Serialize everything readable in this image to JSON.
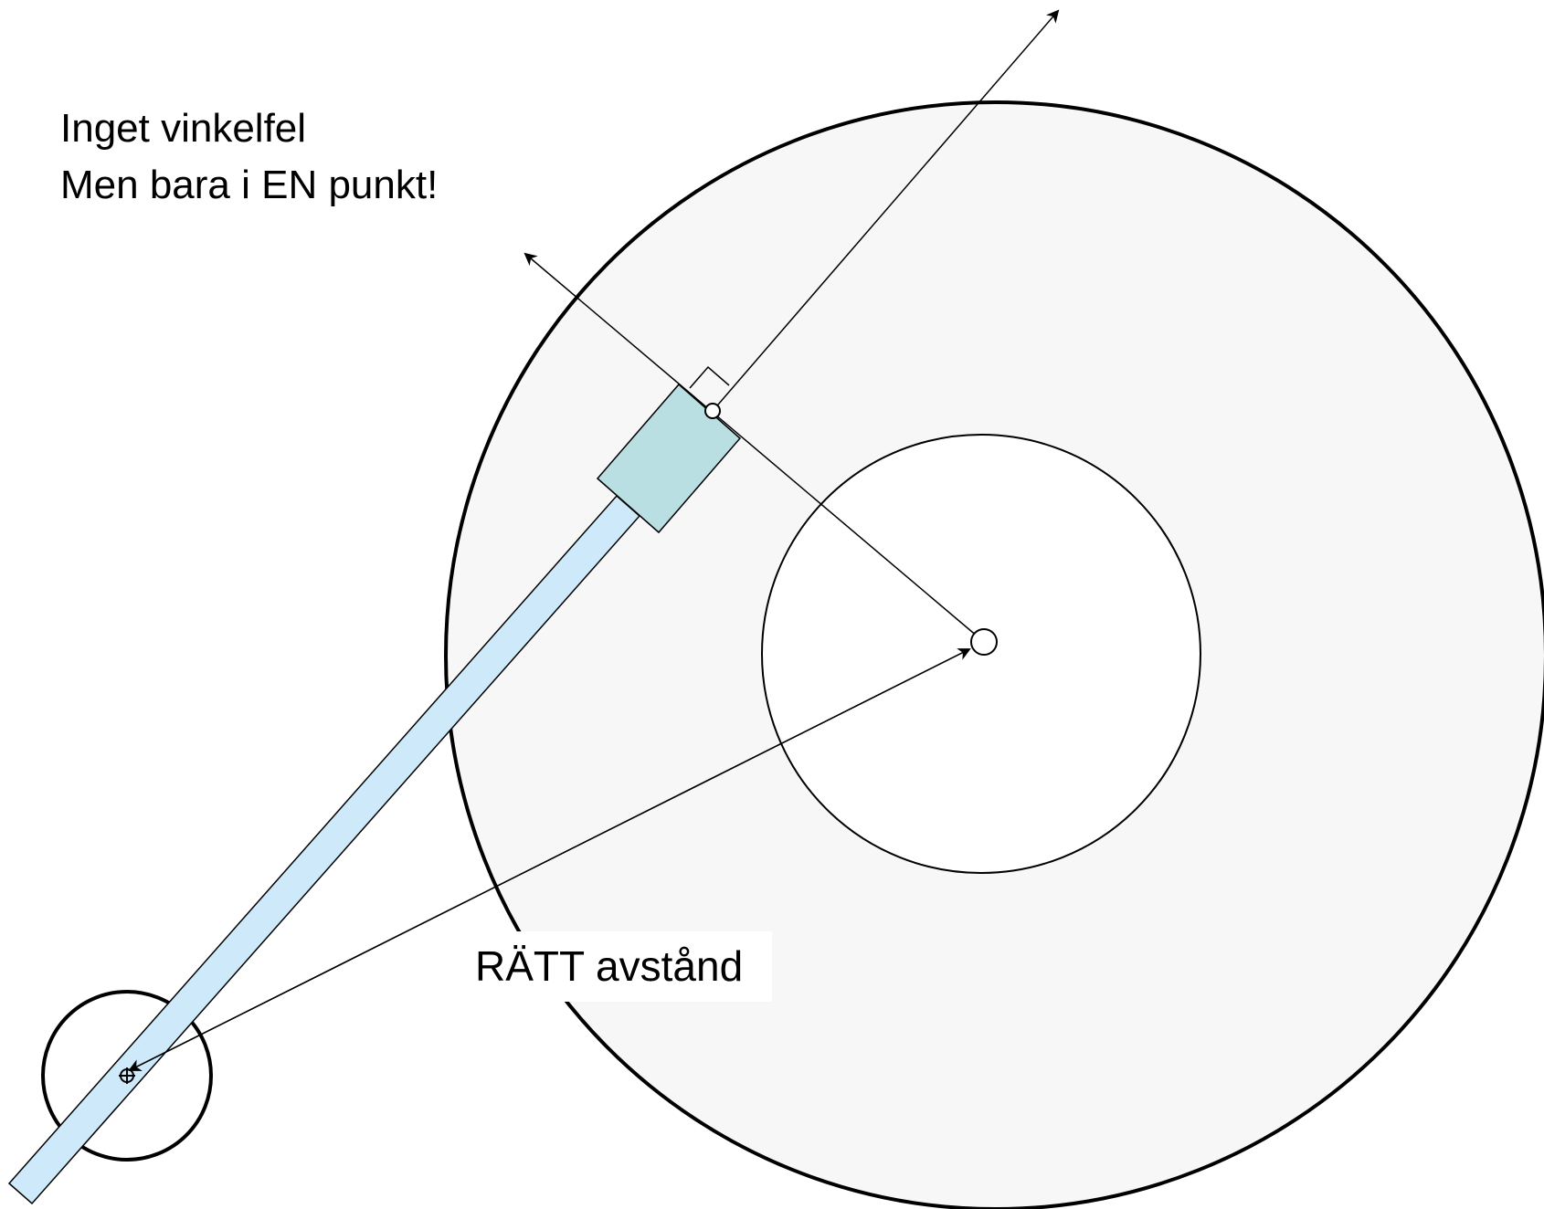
{
  "caption": {
    "line1": "Inget vinkelfel",
    "line2": "Men bara i EN punkt!"
  },
  "distance_label": "RÄTT avstånd",
  "colors": {
    "record_fill": "#f7f7f7",
    "label_fill": "#ffffff",
    "tonearm_fill": "#cde9fa",
    "cartridge_fill": "#b9dfe2",
    "stroke": "#000000"
  }
}
